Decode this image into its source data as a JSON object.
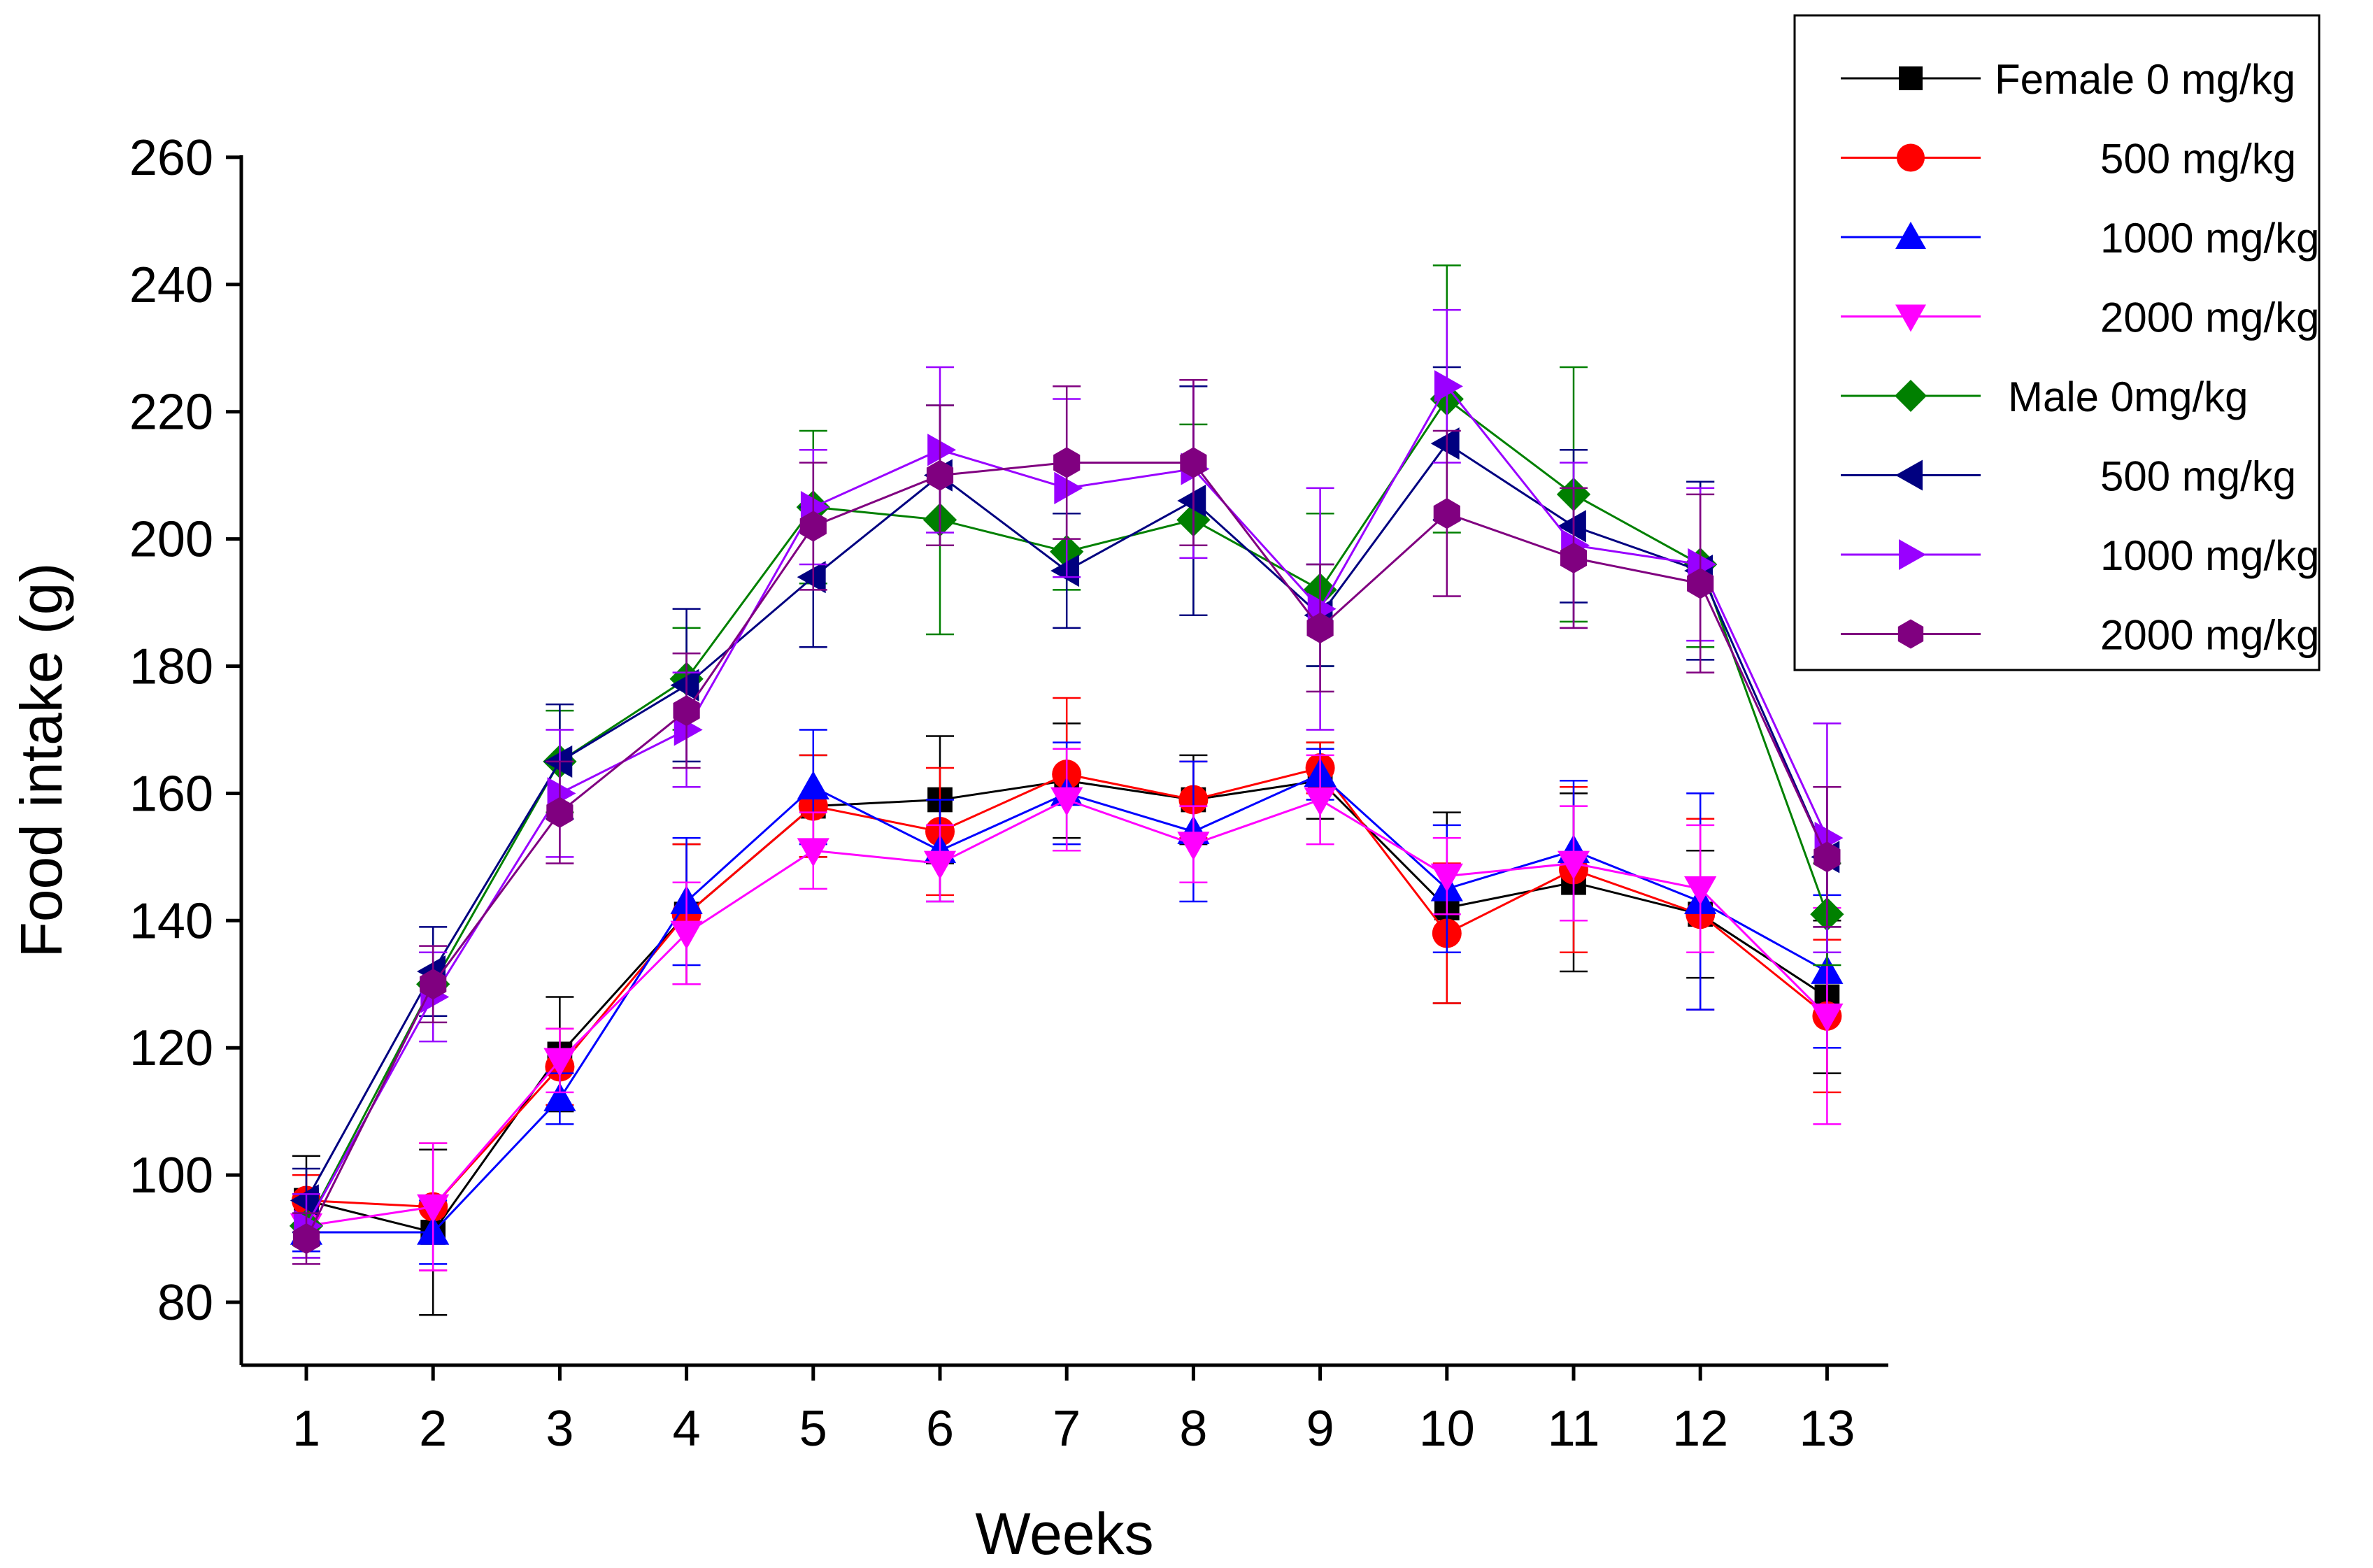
{
  "chart_data": {
    "type": "line",
    "title": "",
    "xlabel": "Weeks",
    "ylabel": "Food intake (g)",
    "x": [
      1,
      2,
      3,
      4,
      5,
      6,
      7,
      8,
      9,
      10,
      11,
      12,
      13
    ],
    "xlim": [
      0.8,
      13.5
    ],
    "ylim": [
      72,
      262
    ],
    "yticks": [
      80,
      100,
      120,
      140,
      160,
      180,
      200,
      220,
      240,
      260
    ],
    "legend_position": "top-right",
    "series": [
      {
        "name": "Female 0 mg/kg",
        "color": "#000000",
        "marker": "square",
        "values": [
          96,
          91,
          119,
          141,
          158,
          159,
          162,
          159,
          162,
          142,
          146,
          141,
          128
        ],
        "errors": [
          7,
          13,
          9,
          11,
          8,
          10,
          9,
          7,
          6,
          15,
          14,
          10,
          12
        ]
      },
      {
        "name": "500 mg/kg",
        "color": "#ff0000",
        "marker": "circle",
        "values": [
          96,
          95,
          117,
          141,
          158,
          154,
          163,
          159,
          164,
          138,
          148,
          141,
          125
        ],
        "errors": [
          4,
          10,
          6,
          11,
          8,
          10,
          12,
          6,
          4,
          11,
          13,
          15,
          12
        ]
      },
      {
        "name": "1000 mg/kg",
        "color": "#0000ff",
        "marker": "triangle-up",
        "values": [
          91,
          91,
          112,
          143,
          161,
          151,
          160,
          154,
          163,
          145,
          151,
          143,
          132
        ],
        "errors": [
          3,
          5,
          4,
          10,
          9,
          8,
          8,
          11,
          4,
          10,
          11,
          17,
          12
        ]
      },
      {
        "name": "2000 mg/kg",
        "color": "#ff00ff",
        "marker": "triangle-down",
        "values": [
          92,
          95,
          118,
          138,
          151,
          149,
          159,
          152,
          159,
          147,
          149,
          145,
          125
        ],
        "errors": [
          5,
          10,
          5,
          8,
          6,
          6,
          8,
          6,
          7,
          6,
          9,
          10,
          17
        ]
      },
      {
        "name": "Male 0mg/kg",
        "color": "#008000",
        "marker": "diamond",
        "values": [
          92,
          130,
          165,
          178,
          205,
          203,
          198,
          203,
          192,
          222,
          207,
          196,
          141
        ],
        "errors": [
          5,
          5,
          8,
          8,
          12,
          18,
          6,
          15,
          12,
          21,
          20,
          13,
          8
        ]
      },
      {
        "name": "500 mg/kg",
        "color": "#000080",
        "marker": "triangle-left",
        "values": [
          96,
          132,
          165,
          177,
          194,
          210,
          195,
          206,
          188,
          215,
          202,
          195,
          150
        ],
        "errors": [
          5,
          7,
          9,
          12,
          11,
          11,
          9,
          18,
          8,
          12,
          12,
          14,
          11
        ]
      },
      {
        "name": "1000 mg/kg",
        "color": "#9900ff",
        "marker": "triangle-right",
        "values": [
          92,
          128,
          160,
          170,
          205,
          214,
          208,
          211,
          189,
          224,
          199,
          196,
          153
        ],
        "errors": [
          5,
          7,
          10,
          9,
          9,
          13,
          14,
          14,
          19,
          12,
          13,
          12,
          18
        ]
      },
      {
        "name": "2000 mg/kg",
        "color": "#800080",
        "marker": "hexagon",
        "values": [
          90,
          130,
          157,
          173,
          202,
          210,
          212,
          212,
          186,
          204,
          197,
          193,
          150
        ],
        "errors": [
          4,
          6,
          8,
          9,
          10,
          11,
          12,
          13,
          10,
          13,
          11,
          14,
          11
        ]
      }
    ]
  }
}
